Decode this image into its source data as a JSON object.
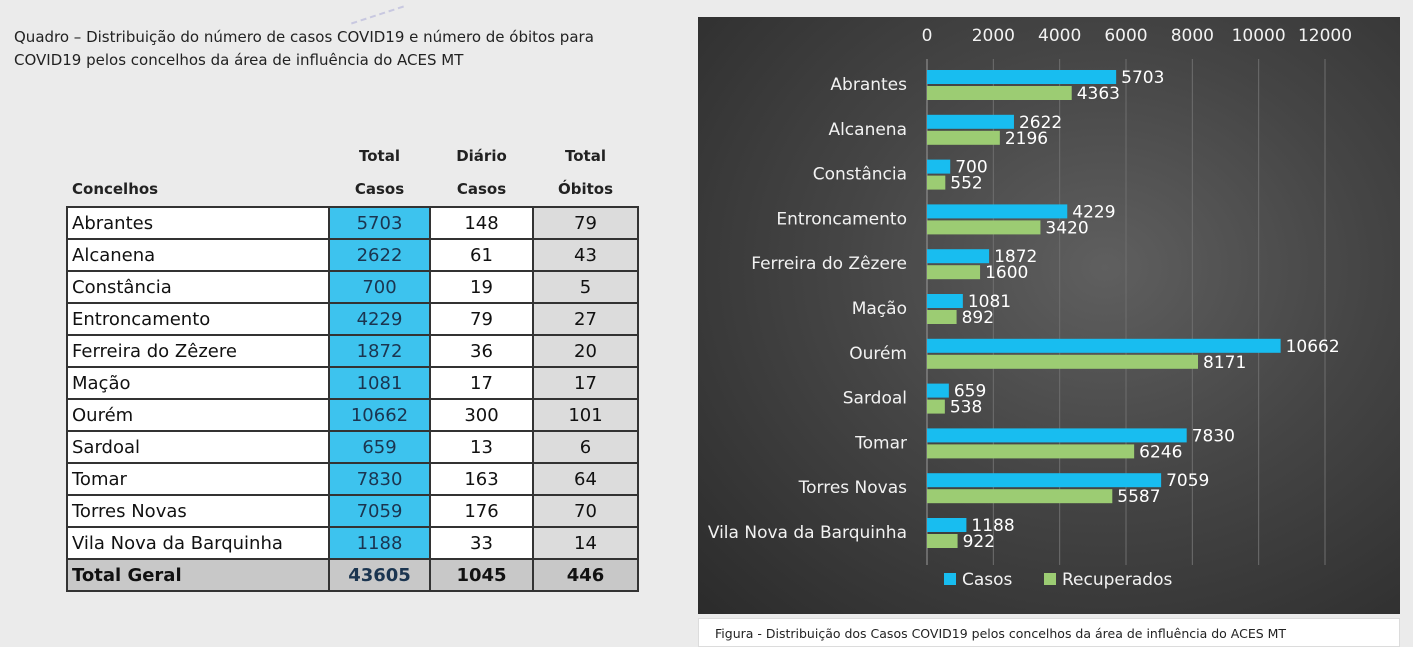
{
  "quadro": {
    "title_line1": "Quadro – Distribuição do número de casos COVID19 e número de óbitos para",
    "title_line2": "COVID19 pelos concelhos da área de influência do ACES MT"
  },
  "table": {
    "headers": {
      "col1": "Concelhos",
      "col2_line1": "Total",
      "col2_line2": "Casos",
      "col3_line1": "Diário",
      "col3_line2": "Casos",
      "col4_line1": "Total",
      "col4_line2": "Óbitos"
    },
    "rows": [
      {
        "name": "Abrantes",
        "total_casos": "5703",
        "diario_casos": "148",
        "total_obitos": "79"
      },
      {
        "name": "Alcanena",
        "total_casos": "2622",
        "diario_casos": "61",
        "total_obitos": "43"
      },
      {
        "name": "Constância",
        "total_casos": "700",
        "diario_casos": "19",
        "total_obitos": "5"
      },
      {
        "name": "Entroncamento",
        "total_casos": "4229",
        "diario_casos": "79",
        "total_obitos": "27"
      },
      {
        "name": "Ferreira do Zêzere",
        "total_casos": "1872",
        "diario_casos": "36",
        "total_obitos": "20"
      },
      {
        "name": "Mação",
        "total_casos": "1081",
        "diario_casos": "17",
        "total_obitos": "17"
      },
      {
        "name": "Ourém",
        "total_casos": "10662",
        "diario_casos": "300",
        "total_obitos": "101"
      },
      {
        "name": "Sardoal",
        "total_casos": "659",
        "diario_casos": "13",
        "total_obitos": "6"
      },
      {
        "name": "Tomar",
        "total_casos": "7830",
        "diario_casos": "163",
        "total_obitos": "64"
      },
      {
        "name": "Torres Novas",
        "total_casos": "7059",
        "diario_casos": "176",
        "total_obitos": "70"
      },
      {
        "name": "Vila Nova da Barquinha",
        "total_casos": "1188",
        "diario_casos": "33",
        "total_obitos": "14"
      }
    ],
    "total": {
      "name": "Total Geral",
      "total_casos": "43605",
      "diario_casos": "1045",
      "total_obitos": "446"
    }
  },
  "colors": {
    "casos": "#18bdf0",
    "recuperados": "#9ccc73",
    "table_casos_bg": "#3dc3ee",
    "table_obitos_bg": "#dcdcdc",
    "table_total_bg": "#c8c8c8"
  },
  "chart_data": {
    "type": "bar",
    "orientation": "horizontal",
    "categories": [
      "Abrantes",
      "Alcanena",
      "Constância",
      "Entroncamento",
      "Ferreira do Zêzere",
      "Mação",
      "Ourém",
      "Sardoal",
      "Tomar",
      "Torres Novas",
      "Vila Nova da Barquinha"
    ],
    "series": [
      {
        "name": "Casos",
        "color": "#18bdf0",
        "values": [
          5703,
          2622,
          700,
          4229,
          1872,
          1081,
          10662,
          659,
          7830,
          7059,
          1188
        ]
      },
      {
        "name": "Recuperados",
        "color": "#9ccc73",
        "values": [
          4363,
          2196,
          552,
          3420,
          1600,
          892,
          8171,
          538,
          6246,
          5587,
          922
        ]
      }
    ],
    "xlim": [
      0,
      12000
    ],
    "xticks": [
      0,
      2000,
      4000,
      6000,
      8000,
      10000,
      12000
    ],
    "x_axis_position": "top",
    "grid": true,
    "legend": "bottom",
    "data_labels": true
  },
  "caption": "Figura -  Distribuição dos Casos COVID19 pelos concelhos da área de influência do ACES MT"
}
